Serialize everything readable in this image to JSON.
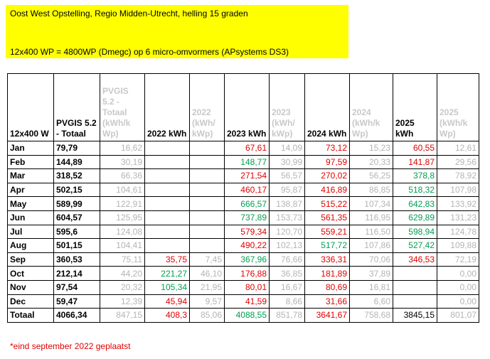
{
  "header": {
    "title": "Oost West Opstelling, Regio Midden-Utrecht, helling 15 graden",
    "subtitle": "12x400 WP = 4800WP (Dmegc) op 6 micro-omvormers (APsystems DS3)"
  },
  "table": {
    "columns": [
      "12x400 W",
      "PVGIS 5.2 - Totaal",
      "PVGIS 5.2 - Totaal (kWh/k Wp)",
      "2022 kWh",
      "2022 (kWh/ kWp)",
      "2023 kWh",
      "2023 (kWh/ kWp)",
      "2024 kWh",
      "2024 (kWh/k Wp)",
      "2025 kWh",
      "2025 (kWh/k Wp)"
    ],
    "rows": [
      [
        "Jan",
        "79,79",
        "16,62",
        "",
        "",
        "67,61",
        "14,09",
        "73,12",
        "15,23",
        "60,55",
        "12,61"
      ],
      [
        "Feb",
        "144,89",
        "30,19",
        "",
        "",
        "148,77",
        "30,99",
        "97,59",
        "20,33",
        "141,87",
        "29,56"
      ],
      [
        "Mar",
        "318,52",
        "66,36",
        "",
        "",
        "271,54",
        "56,57",
        "270,02",
        "56,25",
        "378,8",
        "78,92"
      ],
      [
        "Apr",
        "502,15",
        "104,61",
        "",
        "",
        "460,17",
        "95,87",
        "416,89",
        "86,85",
        "518,32",
        "107,98"
      ],
      [
        "May",
        "589,99",
        "122,91",
        "",
        "",
        "666,57",
        "138,87",
        "515,22",
        "107,34",
        "642,83",
        "133,92"
      ],
      [
        "Jun",
        "604,57",
        "125,95",
        "",
        "",
        "737,89",
        "153,73",
        "561,35",
        "116,95",
        "629,89",
        "131,23"
      ],
      [
        "Jul",
        "595,6",
        "124,08",
        "",
        "",
        "579,34",
        "120,70",
        "559,21",
        "116,50",
        "598,94",
        "124,78"
      ],
      [
        "Aug",
        "501,15",
        "104,41",
        "",
        "",
        "490,22",
        "102,13",
        "517,72",
        "107,86",
        "527,42",
        "109,88"
      ],
      [
        "Sep",
        "360,53",
        "75,11",
        "35,75",
        "7,45",
        "367,96",
        "76,66",
        "336,31",
        "70,06",
        "346,53",
        "72,19"
      ],
      [
        "Oct",
        "212,14",
        "44,20",
        "221,27",
        "46,10",
        "176,88",
        "36,85",
        "181,89",
        "37,89",
        "",
        "0,00"
      ],
      [
        "Nov",
        "97,54",
        "20,32",
        "105,34",
        "21,95",
        "80,01",
        "16,67",
        "80,69",
        "16,81",
        "",
        "0,00"
      ],
      [
        "Dec",
        "59,47",
        "12,39",
        "45,94",
        "9,57",
        "41,59",
        "8,66",
        "31,66",
        "6,60",
        "",
        "0,00"
      ],
      [
        "Totaal",
        "4066,34",
        "847,15",
        "408,3",
        "85,06",
        "4088,55",
        "851,78",
        "3641,67",
        "758,68",
        "3845,15",
        "801,07"
      ]
    ],
    "kwh_colors": [
      [
        null,
        "#e00000",
        "#e00000",
        "#e00000"
      ],
      [
        null,
        "#00a050",
        "#e00000",
        "#e00000"
      ],
      [
        null,
        "#e00000",
        "#e00000",
        "#00a050"
      ],
      [
        null,
        "#e00000",
        "#e00000",
        "#00a050"
      ],
      [
        null,
        "#00a050",
        "#e00000",
        "#00a050"
      ],
      [
        null,
        "#00a050",
        "#e00000",
        "#00a050"
      ],
      [
        null,
        "#e00000",
        "#e00000",
        "#00a050"
      ],
      [
        null,
        "#e00000",
        "#00a050",
        "#00a050"
      ],
      [
        "#e00000",
        "#00a050",
        "#e00000",
        "#e00000"
      ],
      [
        "#00a050",
        "#e00000",
        "#e00000",
        null
      ],
      [
        "#00a050",
        "#e00000",
        "#e00000",
        null
      ],
      [
        "#e00000",
        "#e00000",
        "#e00000",
        null
      ],
      [
        "#e00000",
        "#00a050",
        "#e00000",
        null
      ]
    ]
  },
  "footnote": "*eind september 2022 geplaatst"
}
